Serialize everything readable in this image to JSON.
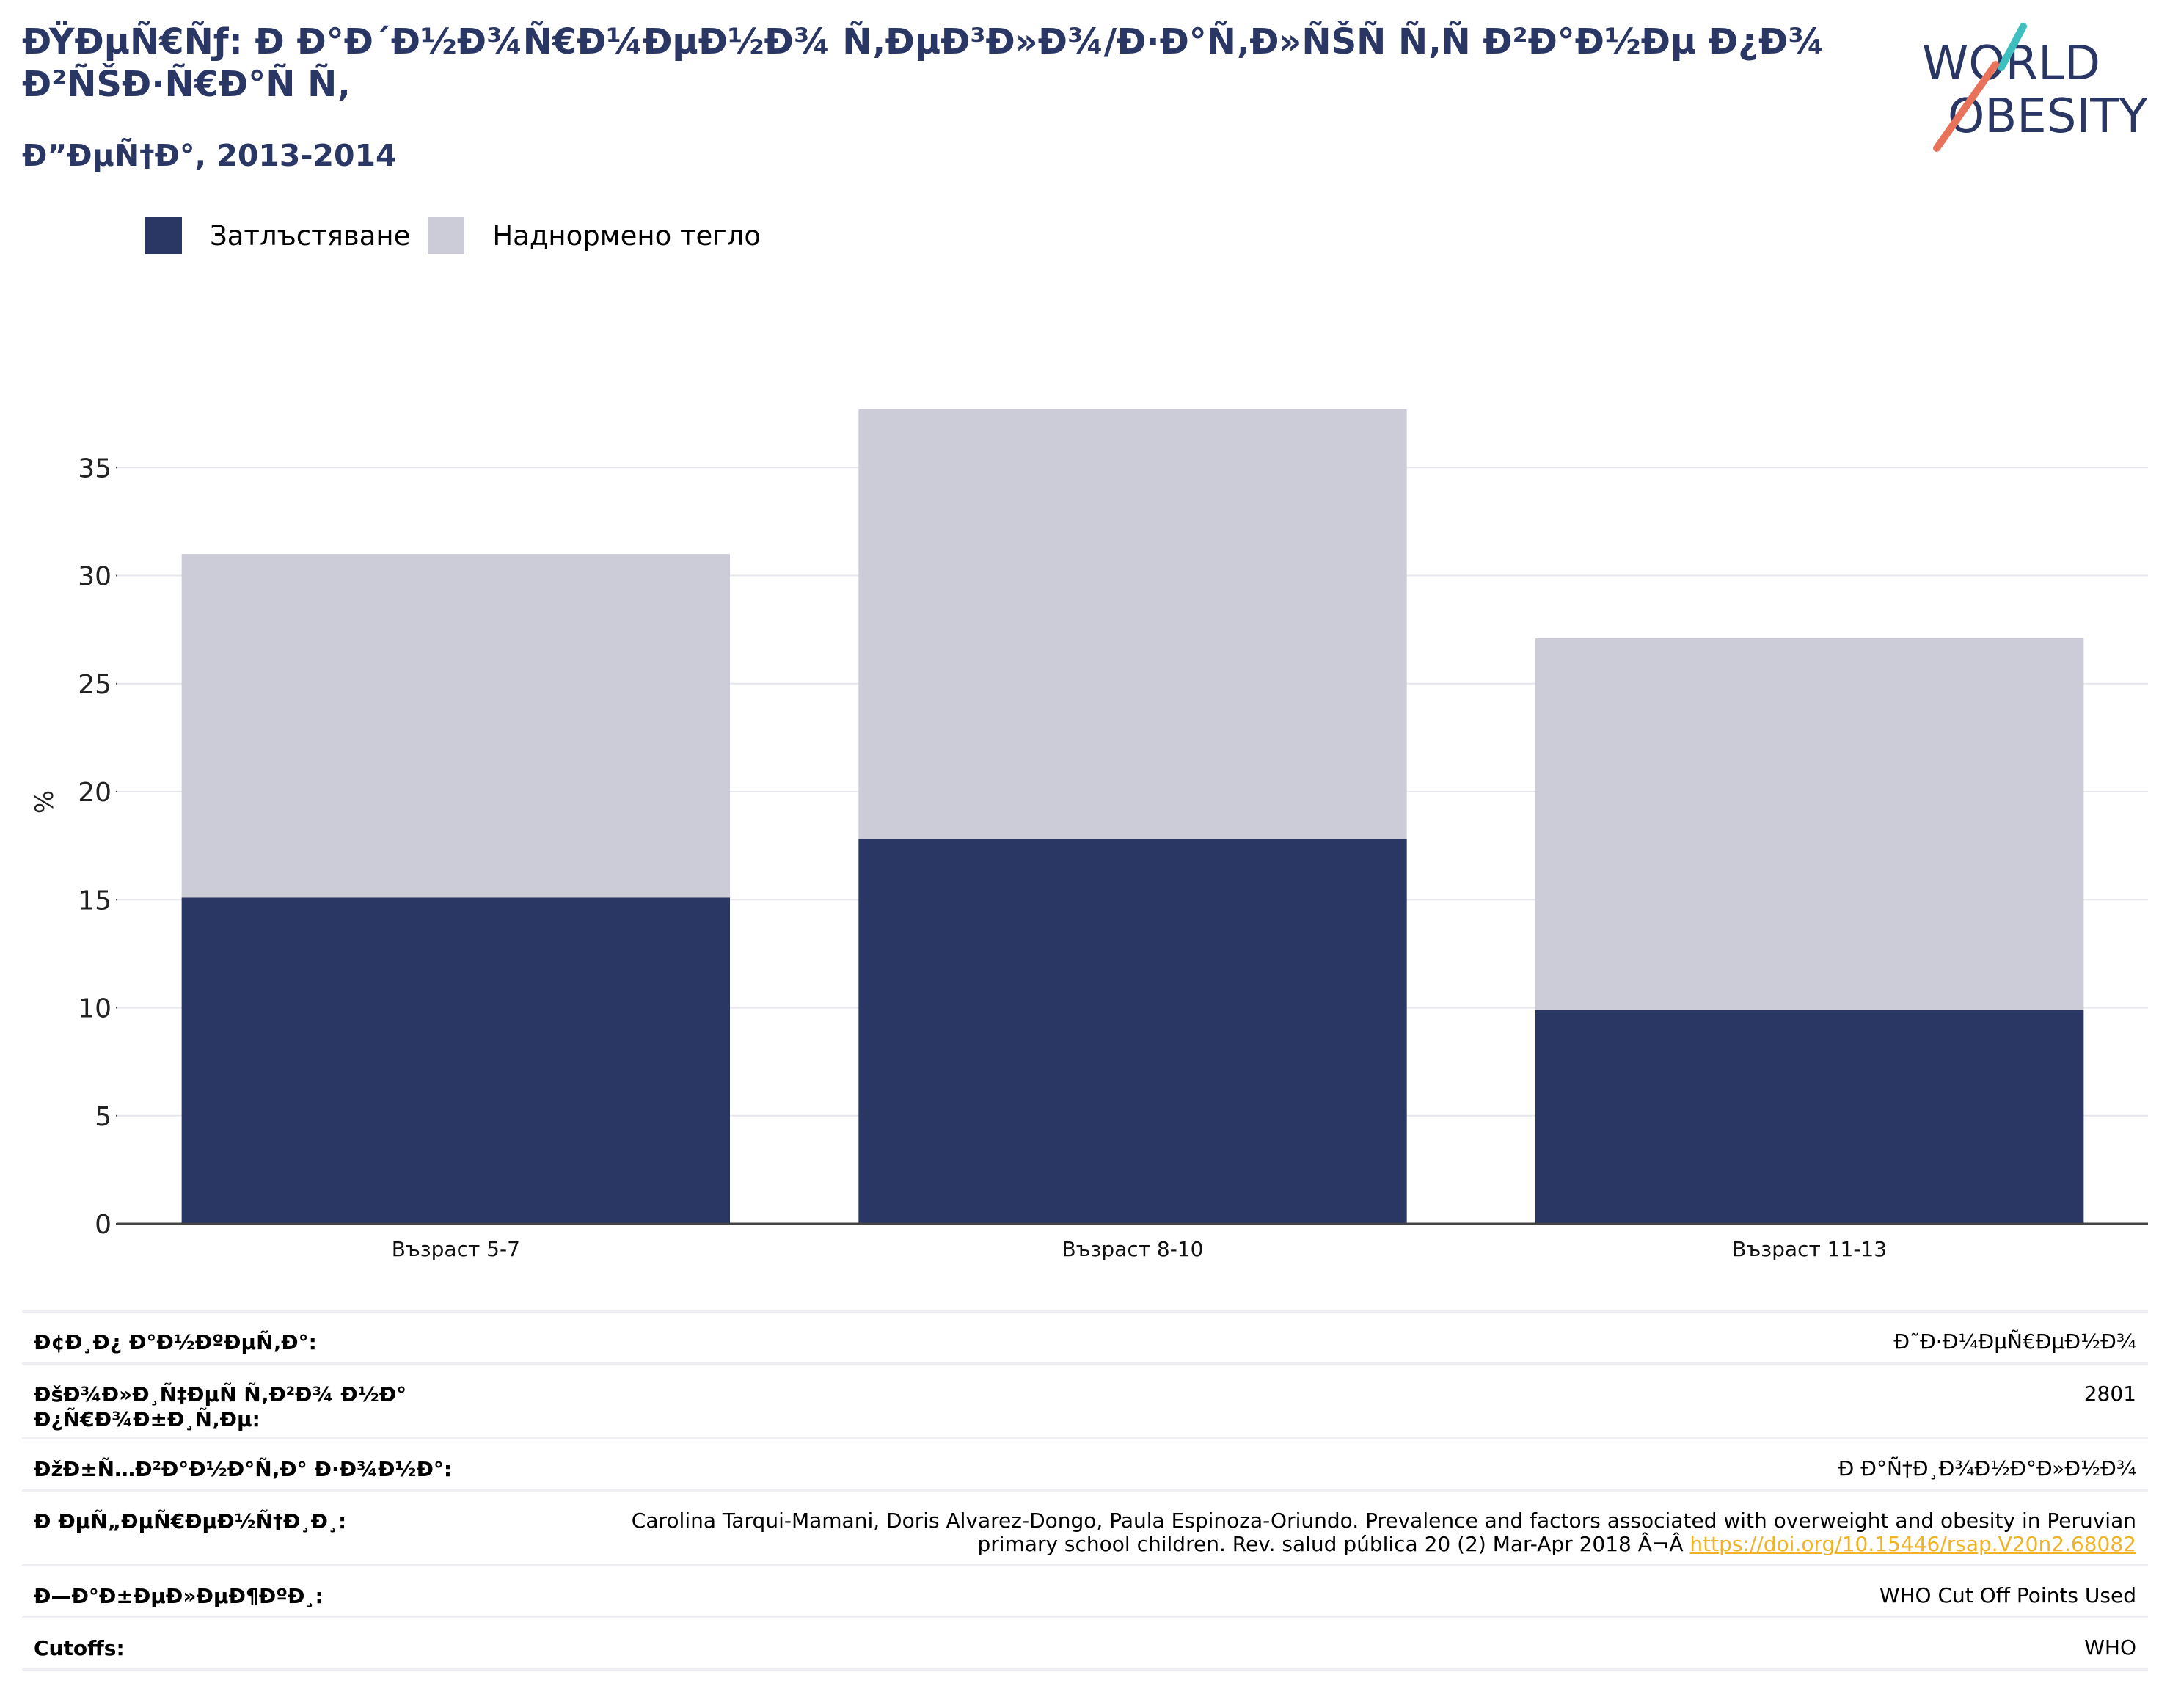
{
  "header": {
    "title": "ÐŸÐµÑ€Ñƒ: Ð Ð°Ð´Ð½Ð¾Ñ€Ð¼ÐµÐ½Ð¾ Ñ‚ÐµÐ³Ð»Ð¾/Ð·Ð°Ñ‚Ð»ÑŠÑ Ñ‚Ñ Ð²Ð°Ð½Ðµ Ð¿Ð¾ Ð²ÑŠÐ·Ñ€Ð°Ñ Ñ‚",
    "subtitle": "Ð”ÐµÑ†Ð°, 2013-2014"
  },
  "logo": {
    "line1": "WORLD",
    "line2": "OBESITY",
    "colors": {
      "text": "#2a3764",
      "teal": "#3dbfbf",
      "coral": "#e8735a"
    }
  },
  "chart_data": {
    "type": "bar",
    "stacked": true,
    "categories": [
      "Възраст 5-7",
      "Възраст 8-10",
      "Възраст 11-13"
    ],
    "series": [
      {
        "name": "Затлъстяване",
        "color": "#2a3764",
        "values": [
          15.1,
          17.8,
          9.9
        ]
      },
      {
        "name": "Наднормено тегло",
        "color": "#cbccd8",
        "values": [
          15.9,
          19.9,
          17.2
        ]
      }
    ],
    "ylabel": "%",
    "ylim": [
      0,
      40
    ],
    "yticks": [
      0,
      5,
      10,
      15,
      20,
      25,
      30,
      35
    ],
    "grid": true,
    "legend": "top-left"
  },
  "info": [
    {
      "key": "Ð¢Ð¸Ð¿ Ð°Ð½ÐºÐµÑ‚Ð°:",
      "value": "Ð˜Ð·Ð¼ÐµÑ€ÐµÐ½Ð¾"
    },
    {
      "key": "ÐšÐ¾Ð»Ð¸Ñ‡ÐµÑ Ñ‚Ð²Ð¾ Ð½Ð° Ð¿Ñ€Ð¾Ð±Ð¸Ñ‚Ðµ:",
      "value": "2801"
    },
    {
      "key": "ÐžÐ±Ñ…Ð²Ð°Ð½Ð°Ñ‚Ð° Ð·Ð¾Ð½Ð°:",
      "value": "Ð Ð°Ñ†Ð¸Ð¾Ð½Ð°Ð»Ð½Ð¾"
    },
    {
      "key": "Ð ÐµÑ„ÐµÑ€ÐµÐ½Ñ†Ð¸Ð¸:",
      "value": "Carolina Tarqui-Mamani, Doris Alvarez-Dongo, Paula Espinoza-Oriundo. Prevalence and factors associated with overweight and obesity in Peruvian primary school children. Rev. salud pública 20 (2) Mar-Apr 2018 Â¬Â ",
      "link": "https://doi.org/10.15446/rsap.V20n2.68082"
    },
    {
      "key": "Ð—Ð°Ð±ÐµÐ»ÐµÐ¶ÐºÐ¸:",
      "value": "WHO Cut Off Points Used"
    },
    {
      "key": "Cutoffs:",
      "value": "WHO"
    }
  ]
}
